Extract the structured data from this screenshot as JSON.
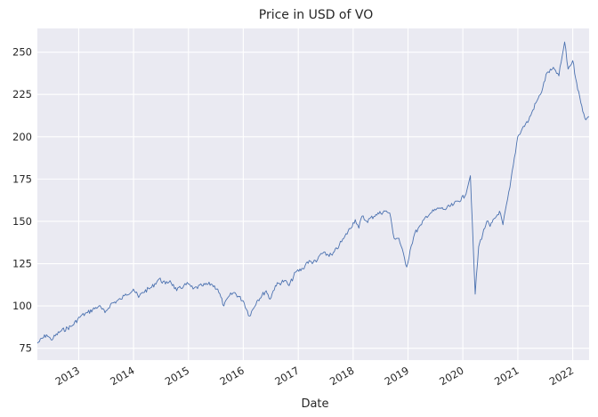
{
  "chart_data": {
    "type": "line",
    "title": "Price in USD of VO",
    "xlabel": "Date",
    "ylabel": "",
    "grid": true,
    "background": "#eaeaf2",
    "line_color": "#4c72b0",
    "xlim": [
      "2012-04-01",
      "2022-04-20"
    ],
    "ylim": [
      68,
      264
    ],
    "x_ticks": [
      "2013",
      "2014",
      "2015",
      "2016",
      "2017",
      "2018",
      "2019",
      "2020",
      "2021",
      "2022"
    ],
    "y_ticks": [
      "75",
      "100",
      "125",
      "150",
      "175",
      "200",
      "225",
      "250"
    ],
    "series": [
      {
        "x": [
          "2012-04-01",
          "2012-06-01",
          "2012-07-01",
          "2012-09-01",
          "2012-11-15",
          "2013-01-15",
          "2013-03-01",
          "2013-05-15",
          "2013-06-25",
          "2013-08-01",
          "2013-10-08",
          "2013-11-01",
          "2013-12-31",
          "2014-02-04",
          "2014-03-01",
          "2014-05-01",
          "2014-06-20",
          "2014-08-01",
          "2014-09-01",
          "2014-10-15",
          "2014-12-01",
          "2015-01-01",
          "2015-02-01",
          "2015-04-01",
          "2015-06-01",
          "2015-07-15",
          "2015-08-25",
          "2015-10-01",
          "2015-11-01",
          "2016-01-01",
          "2016-02-11",
          "2016-04-01",
          "2016-06-01",
          "2016-06-27",
          "2016-08-01",
          "2016-10-01",
          "2016-11-01",
          "2016-12-15",
          "2017-02-01",
          "2017-03-01",
          "2017-05-01",
          "2017-06-01",
          "2017-08-15",
          "2017-10-01",
          "2017-11-01",
          "2018-01-15",
          "2018-02-08",
          "2018-03-01",
          "2018-04-01",
          "2018-06-01",
          "2018-08-01",
          "2018-09-01",
          "2018-10-01",
          "2018-11-01",
          "2018-12-24",
          "2019-01-15",
          "2019-02-15",
          "2019-04-01",
          "2019-05-01",
          "2019-06-01",
          "2019-08-01",
          "2019-09-01",
          "2019-11-01",
          "2020-01-15",
          "2020-02-20",
          "2020-03-23",
          "2020-04-15",
          "2020-06-08",
          "2020-06-30",
          "2020-09-01",
          "2020-09-24",
          "2020-11-09",
          "2020-12-31",
          "2021-01-31",
          "2021-03-15",
          "2021-05-01",
          "2021-06-01",
          "2021-07-15",
          "2021-09-01",
          "2021-10-01",
          "2021-11-08",
          "2021-12-01",
          "2022-01-01",
          "2022-01-27",
          "2022-02-24",
          "2022-03-29",
          "2022-04-20"
        ],
        "values": [
          78,
          83,
          80,
          85,
          88,
          94,
          96,
          100,
          96,
          101,
          104,
          106,
          110,
          105,
          108,
          111,
          116,
          113,
          115,
          109,
          112,
          113,
          110,
          112,
          113,
          110,
          100,
          106,
          108,
          103,
          94,
          103,
          109,
          104,
          112,
          115,
          112,
          120,
          122,
          126,
          126,
          131,
          130,
          136,
          140,
          151,
          146,
          153,
          150,
          154,
          156,
          155,
          140,
          140,
          123,
          133,
          143,
          148,
          153,
          155,
          158,
          157,
          160,
          165,
          177,
          107,
          135,
          150,
          147,
          156,
          148,
          170,
          200,
          205,
          210,
          220,
          225,
          238,
          240,
          236,
          256,
          240,
          245,
          232,
          220,
          210,
          212
        ]
      }
    ]
  }
}
